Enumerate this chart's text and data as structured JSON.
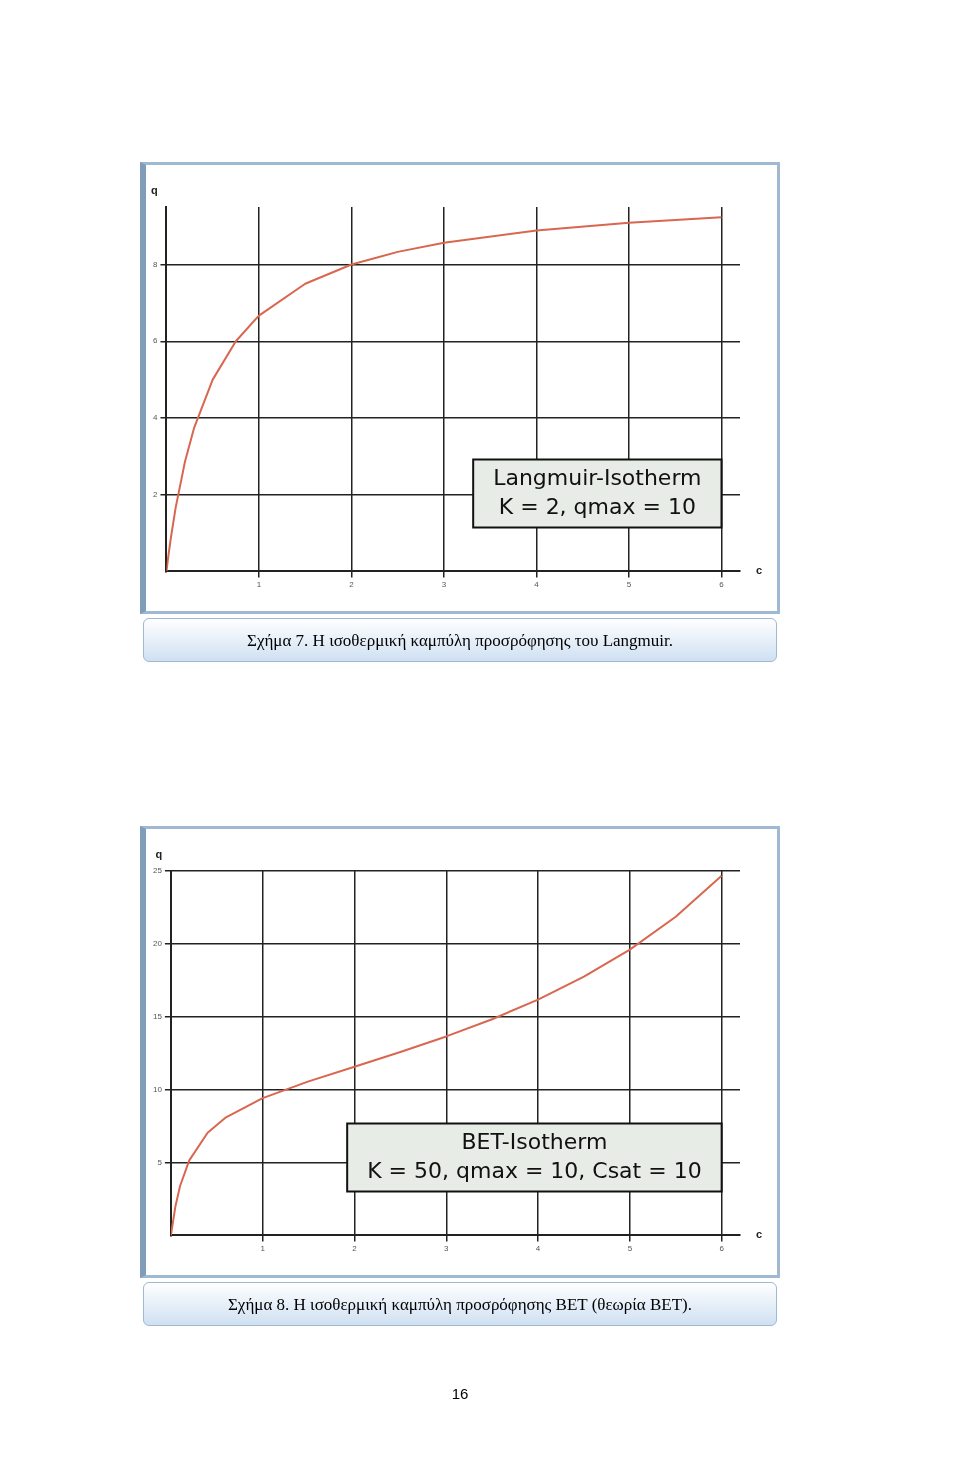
{
  "chart_data": [
    {
      "type": "line",
      "title": "Σχήμα 7. Η ισοθερμική καμπύλη προσρόφησης του Langmuir.",
      "xlabel": "c",
      "ylabel": "q",
      "annotations": [
        "Langmuir-Isotherm",
        "K = 2, qmax = 10"
      ],
      "x": [
        0,
        0.02,
        0.05,
        0.1,
        0.2,
        0.3,
        0.5,
        0.75,
        1,
        1.5,
        2,
        2.5,
        3,
        4,
        5,
        6
      ],
      "series": [
        {
          "color": "#d9674f",
          "values": [
            0,
            0.39,
            0.91,
            1.67,
            2.86,
            3.75,
            5,
            6,
            6.67,
            7.5,
            8,
            8.33,
            8.57,
            8.89,
            9.09,
            9.23
          ]
        }
      ],
      "xlim": [
        0,
        6.2
      ],
      "xticks": [
        1,
        2,
        3,
        4,
        5,
        6
      ],
      "ylim": [
        0,
        9.5
      ],
      "yticks": [
        2,
        4,
        6,
        8
      ],
      "grid": true,
      "legend": false,
      "marker": "none",
      "line_style": "solid"
    },
    {
      "type": "line",
      "title": "Σχήμα 8. Η ισοθερμική καμπύλη προσρόφησης BET (θεωρία BET).",
      "xlabel": "c",
      "ylabel": "q",
      "annotations": [
        "BET-Isotherm",
        "K = 50, qmax = 10, Csat = 10",
        "16"
      ],
      "x": [
        0,
        0.05,
        0.1,
        0.2,
        0.4,
        0.6,
        1,
        1.5,
        2,
        2.5,
        3,
        3.5,
        4,
        4.5,
        5,
        5.5,
        6
      ],
      "series": [
        {
          "color": "#d9674f",
          "values": [
            0,
            2.02,
            3.39,
            5.15,
            7.04,
            8.1,
            9.42,
            10.57,
            11.57,
            12.58,
            13.65,
            14.83,
            16.18,
            17.75,
            19.61,
            21.86,
            24.67
          ]
        }
      ],
      "xlim": [
        0,
        6.2
      ],
      "xticks": [
        1,
        2,
        3,
        4,
        5,
        6
      ],
      "ylim": [
        0,
        25
      ],
      "yticks": [
        5,
        10,
        15,
        20,
        25
      ],
      "grid": true,
      "legend": false,
      "marker": "none",
      "line_style": "solid"
    }
  ]
}
